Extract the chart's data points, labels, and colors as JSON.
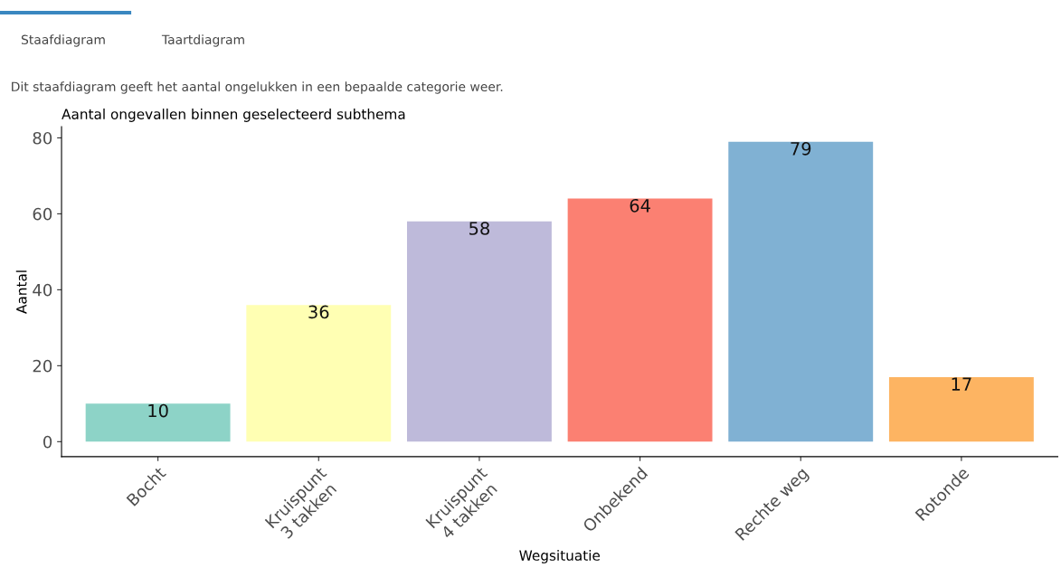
{
  "chart_data": {
    "type": "bar",
    "title": "Aantal ongevallen binnen geselecteerd subthema",
    "subtitle": "Dit staafdiagram geeft het aantal ongelukken in een bepaalde categorie weer.",
    "annotations": [
      "Staafdiagram",
      "Taartdiagram"
    ],
    "xlabel": "Wegsituatie",
    "ylabel": "Aantal",
    "categories": [
      "Bocht",
      "Kruispunt\n3 takken",
      "Kruispunt\n4 takken",
      "Onbekend",
      "Rechte weg",
      "Rotonde"
    ],
    "values": [
      10,
      36,
      58,
      64,
      79,
      17
    ],
    "colors": [
      "#8dd3c7",
      "#ffffb3",
      "#bebada",
      "#fb8072",
      "#80b1d3",
      "#fdb462"
    ],
    "ylim": [
      -3.95,
      82.95
    ],
    "yticks": [
      0,
      20,
      40,
      60,
      80
    ],
    "data_labels": true,
    "grid": false
  }
}
